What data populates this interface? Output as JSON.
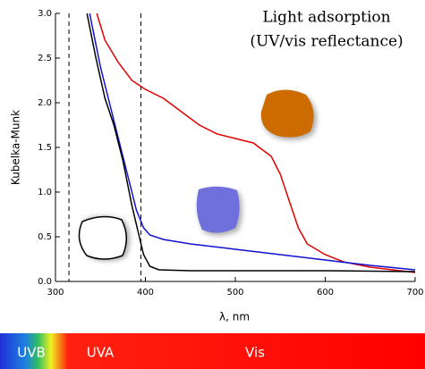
{
  "chart_data": {
    "type": "line",
    "title": "Light adsorption",
    "subtitle": "(UV/vis reflectance)",
    "xlabel": "λ, nm",
    "ylabel": "Kubelka-Munk",
    "xlim": [
      300,
      700
    ],
    "xticks": [
      300,
      400,
      500,
      600,
      700
    ],
    "ylim": [
      0,
      3
    ],
    "yticks": [
      {
        "value": 0,
        "label": "0.0"
      },
      0.5,
      {
        "value": 1,
        "label": "1.0"
      },
      1.5,
      {
        "value": 2,
        "label": "2.0"
      },
      2.5,
      {
        "value": 3,
        "label": "3.0"
      }
    ],
    "vlines": [
      315,
      395
    ],
    "series": [
      {
        "color": "#e00000",
        "x": [
          346,
          355,
          370,
          385,
          400,
          420,
          440,
          460,
          480,
          500,
          520,
          540,
          550,
          560,
          570,
          580,
          600,
          620,
          650,
          700
        ],
        "values": [
          3.0,
          2.7,
          2.45,
          2.25,
          2.15,
          2.05,
          1.9,
          1.75,
          1.65,
          1.6,
          1.55,
          1.4,
          1.2,
          0.9,
          0.6,
          0.42,
          0.3,
          0.22,
          0.16,
          0.1
        ]
      },
      {
        "color": "#1010d0",
        "x": [
          338,
          350,
          360,
          370,
          380,
          390,
          398,
          405,
          420,
          450,
          500,
          550,
          600,
          650,
          700
        ],
        "values": [
          3.0,
          2.4,
          2.0,
          1.6,
          1.2,
          0.8,
          0.6,
          0.52,
          0.47,
          0.42,
          0.36,
          0.3,
          0.24,
          0.18,
          0.13
        ]
      },
      {
        "color": "#000000",
        "x": [
          335,
          345,
          355,
          365,
          375,
          385,
          392,
          398,
          405,
          415,
          450,
          500,
          600,
          700
        ],
        "values": [
          3.0,
          2.5,
          2.05,
          1.75,
          1.35,
          0.85,
          0.55,
          0.3,
          0.17,
          0.13,
          0.12,
          0.12,
          0.12,
          0.11
        ]
      }
    ]
  },
  "spectrum_bar": {
    "labels": [
      "UVB",
      "UVA",
      "Vis"
    ]
  }
}
